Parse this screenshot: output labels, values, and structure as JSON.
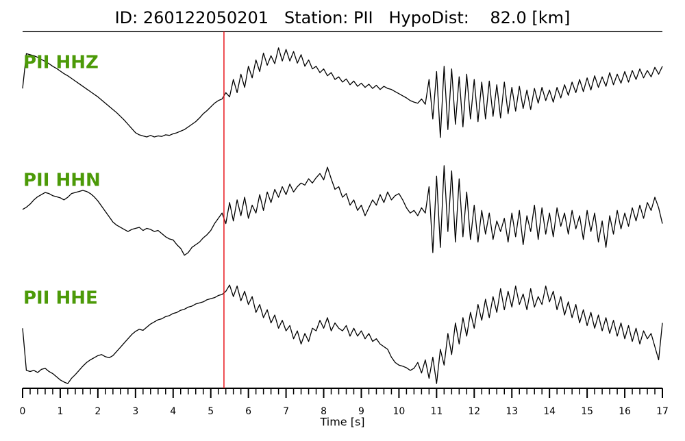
{
  "chart_data": {
    "type": "line",
    "title": "ID: 260122050201   Station: PII   HypoDist:    82.0 [km]",
    "xlabel": "Time [s]",
    "xlim": [
      0,
      17
    ],
    "xticks": [
      0,
      1,
      2,
      3,
      4,
      5,
      6,
      7,
      8,
      9,
      10,
      11,
      12,
      13,
      14,
      15,
      16,
      17
    ],
    "xminor_divisions": 5,
    "ylim": [
      -1,
      1
    ],
    "pick": 5.35,
    "pick_color": "#e8151b",
    "label_color": "#4c9a08",
    "x": [
      0,
      0.1,
      0.2,
      0.3,
      0.4,
      0.5,
      0.6,
      0.7,
      0.8,
      0.9,
      1,
      1.1,
      1.2,
      1.3,
      1.4,
      1.5,
      1.6,
      1.7,
      1.8,
      1.9,
      2,
      2.1,
      2.2,
      2.3,
      2.4,
      2.5,
      2.6,
      2.7,
      2.8,
      2.9,
      3,
      3.1,
      3.2,
      3.3,
      3.4,
      3.5,
      3.6,
      3.7,
      3.8,
      3.9,
      4,
      4.1,
      4.2,
      4.3,
      4.4,
      4.5,
      4.6,
      4.7,
      4.8,
      4.9,
      5,
      5.1,
      5.2,
      5.3,
      5.4,
      5.5,
      5.6,
      5.7,
      5.8,
      5.9,
      6,
      6.1,
      6.2,
      6.3,
      6.4,
      6.5,
      6.6,
      6.7,
      6.8,
      6.9,
      7,
      7.1,
      7.2,
      7.3,
      7.4,
      7.5,
      7.6,
      7.7,
      7.8,
      7.9,
      8,
      8.1,
      8.2,
      8.3,
      8.4,
      8.5,
      8.6,
      8.7,
      8.8,
      8.9,
      9,
      9.1,
      9.2,
      9.3,
      9.4,
      9.5,
      9.6,
      9.7,
      9.8,
      9.9,
      10,
      10.1,
      10.2,
      10.3,
      10.4,
      10.5,
      10.6,
      10.7,
      10.8,
      10.9,
      11,
      11.1,
      11.2,
      11.3,
      11.4,
      11.5,
      11.6,
      11.7,
      11.8,
      11.9,
      12,
      12.1,
      12.2,
      12.3,
      12.4,
      12.5,
      12.6,
      12.7,
      12.8,
      12.9,
      13,
      13.1,
      13.2,
      13.3,
      13.4,
      13.5,
      13.6,
      13.7,
      13.8,
      13.9,
      14,
      14.1,
      14.2,
      14.3,
      14.4,
      14.5,
      14.6,
      14.7,
      14.8,
      14.9,
      15,
      15.1,
      15.2,
      15.3,
      15.4,
      15.5,
      15.6,
      15.7,
      15.8,
      15.9,
      16,
      16.1,
      16.2,
      16.3,
      16.4,
      16.5,
      16.6,
      16.7,
      16.8,
      16.9,
      17
    ],
    "series": [
      {
        "name": "PII HHZ",
        "color": "#000000",
        "values": [
          0.18,
          0.84,
          0.82,
          0.8,
          0.77,
          0.73,
          0.69,
          0.65,
          0.6,
          0.56,
          0.51,
          0.46,
          0.42,
          0.37,
          0.32,
          0.27,
          0.22,
          0.17,
          0.12,
          0.07,
          0.02,
          -0.04,
          -0.1,
          -0.16,
          -0.22,
          -0.28,
          -0.35,
          -0.42,
          -0.5,
          -0.58,
          -0.66,
          -0.7,
          -0.72,
          -0.74,
          -0.71,
          -0.74,
          -0.72,
          -0.73,
          -0.7,
          -0.71,
          -0.68,
          -0.66,
          -0.63,
          -0.6,
          -0.55,
          -0.5,
          -0.45,
          -0.38,
          -0.3,
          -0.24,
          -0.17,
          -0.1,
          -0.05,
          -0.02,
          0.1,
          0.02,
          0.35,
          0.1,
          0.45,
          0.2,
          0.6,
          0.38,
          0.72,
          0.5,
          0.85,
          0.62,
          0.8,
          0.65,
          0.95,
          0.7,
          0.92,
          0.7,
          0.88,
          0.66,
          0.82,
          0.6,
          0.72,
          0.55,
          0.6,
          0.48,
          0.55,
          0.42,
          0.48,
          0.35,
          0.4,
          0.3,
          0.36,
          0.25,
          0.32,
          0.22,
          0.28,
          0.2,
          0.26,
          0.18,
          0.24,
          0.16,
          0.22,
          0.18,
          0.16,
          0.12,
          0.08,
          0.04,
          0.0,
          -0.05,
          -0.08,
          -0.1,
          -0.02,
          -0.12,
          0.35,
          -0.4,
          0.5,
          -0.75,
          0.6,
          -0.6,
          0.55,
          -0.5,
          0.4,
          -0.55,
          0.45,
          -0.4,
          0.35,
          -0.45,
          0.3,
          -0.4,
          0.32,
          -0.35,
          0.25,
          -0.38,
          0.3,
          -0.3,
          0.2,
          -0.25,
          0.22,
          -0.2,
          0.15,
          -0.22,
          0.18,
          -0.1,
          0.2,
          -0.05,
          0.15,
          -0.08,
          0.2,
          0.0,
          0.25,
          0.05,
          0.3,
          0.1,
          0.35,
          0.12,
          0.38,
          0.15,
          0.42,
          0.2,
          0.4,
          0.22,
          0.48,
          0.25,
          0.45,
          0.28,
          0.5,
          0.3,
          0.52,
          0.35,
          0.55,
          0.38,
          0.52,
          0.4,
          0.58,
          0.45,
          0.6
        ]
      },
      {
        "name": "PII HHN",
        "color": "#000000",
        "values": [
          0.12,
          0.16,
          0.22,
          0.3,
          0.36,
          0.4,
          0.44,
          0.42,
          0.38,
          0.36,
          0.34,
          0.3,
          0.35,
          0.42,
          0.44,
          0.46,
          0.48,
          0.46,
          0.42,
          0.36,
          0.28,
          0.18,
          0.08,
          -0.02,
          -0.12,
          -0.18,
          -0.22,
          -0.26,
          -0.3,
          -0.26,
          -0.24,
          -0.22,
          -0.28,
          -0.24,
          -0.26,
          -0.3,
          -0.28,
          -0.34,
          -0.4,
          -0.44,
          -0.46,
          -0.55,
          -0.62,
          -0.75,
          -0.7,
          -0.6,
          -0.55,
          -0.5,
          -0.42,
          -0.36,
          -0.28,
          -0.15,
          -0.05,
          0.05,
          -0.15,
          0.25,
          -0.1,
          0.3,
          0.0,
          0.35,
          -0.05,
          0.2,
          0.05,
          0.4,
          0.1,
          0.45,
          0.25,
          0.5,
          0.35,
          0.55,
          0.4,
          0.6,
          0.45,
          0.55,
          0.62,
          0.58,
          0.7,
          0.62,
          0.72,
          0.8,
          0.68,
          0.92,
          0.7,
          0.5,
          0.55,
          0.35,
          0.42,
          0.2,
          0.3,
          0.1,
          0.2,
          0.0,
          0.15,
          0.3,
          0.2,
          0.4,
          0.25,
          0.45,
          0.3,
          0.38,
          0.42,
          0.3,
          0.15,
          0.05,
          0.1,
          0.0,
          0.15,
          0.05,
          0.55,
          -0.7,
          0.75,
          -0.6,
          0.95,
          -0.3,
          0.85,
          -0.5,
          0.7,
          -0.4,
          0.45,
          -0.45,
          0.2,
          -0.5,
          0.1,
          -0.35,
          0.05,
          -0.45,
          -0.1,
          -0.3,
          -0.05,
          -0.5,
          0.05,
          -0.4,
          0.1,
          -0.55,
          0.0,
          -0.3,
          0.2,
          -0.45,
          0.15,
          -0.35,
          0.05,
          -0.4,
          0.15,
          -0.2,
          0.05,
          -0.35,
          0.1,
          -0.25,
          0.0,
          -0.45,
          0.1,
          -0.3,
          0.05,
          -0.5,
          -0.1,
          -0.6,
          0.0,
          -0.35,
          0.1,
          -0.25,
          0.05,
          -0.2,
          0.15,
          -0.1,
          0.2,
          -0.05,
          0.25,
          0.1,
          0.35,
          0.15,
          -0.15
        ]
      },
      {
        "name": "PII HHE",
        "color": "#000000",
        "values": [
          0.1,
          -0.7,
          -0.72,
          -0.7,
          -0.74,
          -0.68,
          -0.66,
          -0.72,
          -0.76,
          -0.82,
          -0.88,
          -0.92,
          -0.95,
          -0.85,
          -0.78,
          -0.7,
          -0.62,
          -0.55,
          -0.5,
          -0.46,
          -0.42,
          -0.4,
          -0.44,
          -0.46,
          -0.42,
          -0.34,
          -0.26,
          -0.18,
          -0.1,
          -0.02,
          0.04,
          0.08,
          0.06,
          0.12,
          0.18,
          0.22,
          0.26,
          0.28,
          0.32,
          0.34,
          0.38,
          0.4,
          0.44,
          0.46,
          0.5,
          0.52,
          0.56,
          0.58,
          0.6,
          0.64,
          0.66,
          0.68,
          0.72,
          0.74,
          0.8,
          0.92,
          0.7,
          0.9,
          0.62,
          0.8,
          0.55,
          0.7,
          0.4,
          0.55,
          0.3,
          0.45,
          0.2,
          0.35,
          0.1,
          0.25,
          0.05,
          0.15,
          -0.1,
          0.05,
          -0.2,
          0.0,
          -0.15,
          0.1,
          0.05,
          0.25,
          0.1,
          0.3,
          0.05,
          0.2,
          0.1,
          0.05,
          0.15,
          -0.05,
          0.1,
          -0.05,
          0.05,
          -0.1,
          0.0,
          -0.15,
          -0.1,
          -0.2,
          -0.25,
          -0.3,
          -0.45,
          -0.55,
          -0.6,
          -0.62,
          -0.65,
          -0.7,
          -0.66,
          -0.55,
          -0.75,
          -0.5,
          -0.85,
          -0.45,
          -0.95,
          -0.3,
          -0.6,
          0.0,
          -0.4,
          0.2,
          -0.2,
          0.3,
          -0.05,
          0.4,
          0.1,
          0.55,
          0.25,
          0.65,
          0.3,
          0.7,
          0.4,
          0.85,
          0.45,
          0.8,
          0.5,
          0.9,
          0.55,
          0.75,
          0.45,
          0.85,
          0.5,
          0.7,
          0.55,
          0.9,
          0.6,
          0.8,
          0.45,
          0.7,
          0.35,
          0.6,
          0.3,
          0.55,
          0.2,
          0.45,
          0.15,
          0.4,
          0.1,
          0.35,
          0.05,
          0.3,
          0.0,
          0.25,
          -0.05,
          0.2,
          -0.1,
          0.15,
          -0.15,
          0.1,
          -0.2,
          0.05,
          -0.1,
          0.0,
          -0.25,
          -0.5,
          0.2
        ]
      }
    ]
  }
}
